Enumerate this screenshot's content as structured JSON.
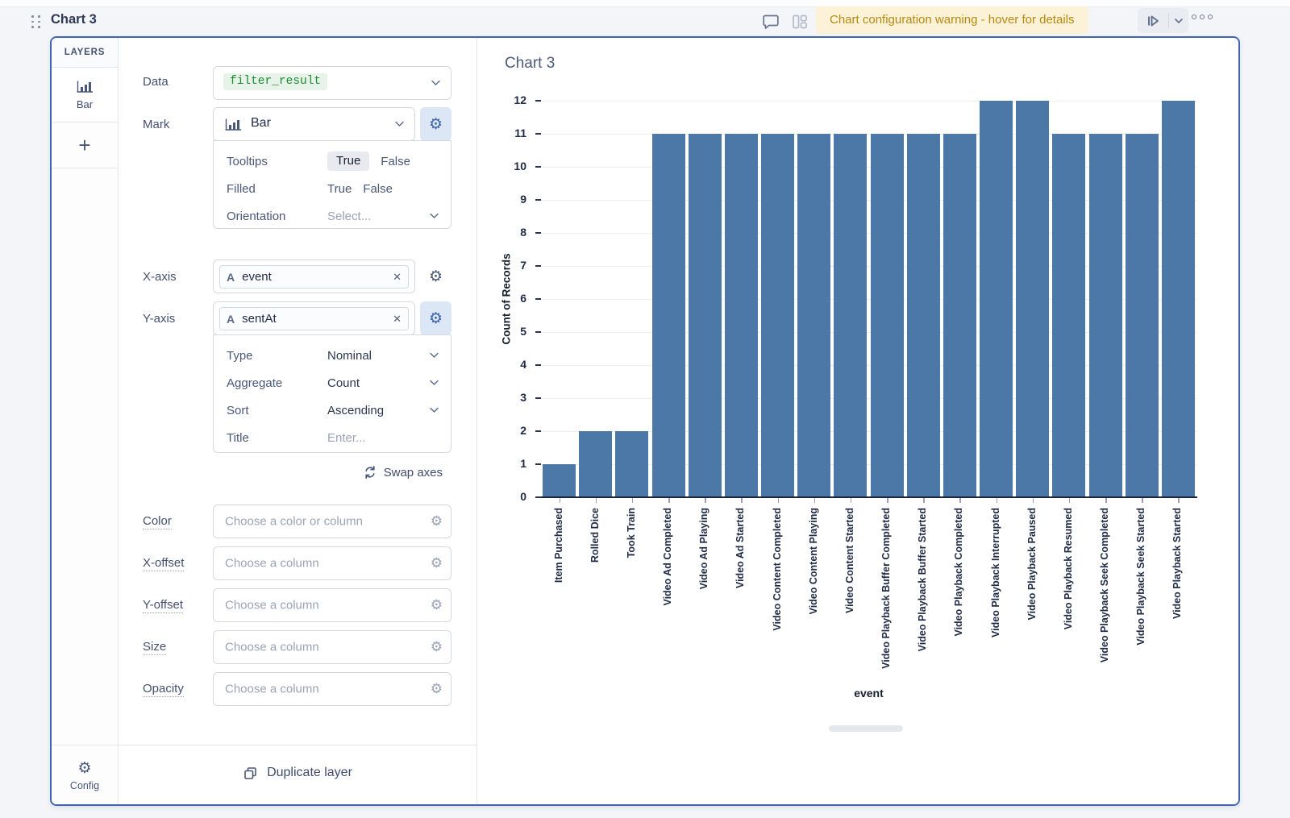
{
  "header": {
    "title": "Chart 3",
    "warning": "Chart configuration warning - hover for details"
  },
  "layers_panel": {
    "title": "LAYERS",
    "layer_label": "Bar",
    "config_label": "Config"
  },
  "config": {
    "data_label": "Data",
    "data_value": "filter_result",
    "mark_label": "Mark",
    "mark_value": "Bar",
    "mark_options": {
      "tooltips_label": "Tooltips",
      "tooltips_value": "True",
      "tooltips_alt": "False",
      "filled_label": "Filled",
      "filled_true": "True",
      "filled_false": "False",
      "orientation_label": "Orientation",
      "orientation_value": "Select..."
    },
    "x_axis": {
      "label": "X-axis",
      "field": "event"
    },
    "y_axis": {
      "label": "Y-axis",
      "field": "sentAt",
      "type_label": "Type",
      "type_value": "Nominal",
      "aggregate_label": "Aggregate",
      "aggregate_value": "Count",
      "sort_label": "Sort",
      "sort_value": "Ascending",
      "title_label": "Title",
      "title_placeholder": "Enter..."
    },
    "swap_axes_label": "Swap axes",
    "encodings": [
      {
        "label": "Color",
        "placeholder": "Choose a color or column"
      },
      {
        "label": "X-offset",
        "placeholder": "Choose a column"
      },
      {
        "label": "Y-offset",
        "placeholder": "Choose a column"
      },
      {
        "label": "Size",
        "placeholder": "Choose a column"
      },
      {
        "label": "Opacity",
        "placeholder": "Choose a column"
      }
    ],
    "duplicate_layer_label": "Duplicate layer"
  },
  "chart_data": {
    "type": "bar",
    "title": "Chart 3",
    "categories": [
      "Item Purchased",
      "Rolled Dice",
      "Took Train",
      "Video Ad Completed",
      "Video Ad Playing",
      "Video Ad Started",
      "Video Content Completed",
      "Video Content Playing",
      "Video Content Started",
      "Video Playback Buffer Completed",
      "Video Playback Buffer Started",
      "Video Playback Completed",
      "Video Playback Interrupted",
      "Video Playback Paused",
      "Video Playback Resumed",
      "Video Playback Seek Completed",
      "Video Playback Seek Started",
      "Video Playback Started"
    ],
    "values": [
      1,
      2,
      2,
      11,
      11,
      11,
      11,
      11,
      11,
      11,
      11,
      11,
      12,
      12,
      11,
      11,
      11,
      12
    ],
    "xlabel": "event",
    "ylabel": "Count of Records",
    "ylim": [
      0,
      12
    ],
    "yticks": [
      0,
      1,
      2,
      3,
      4,
      5,
      6,
      7,
      8,
      9,
      10,
      11,
      12
    ],
    "grid": true,
    "legend": "none",
    "bar_color": "#4c78a8"
  },
  "icons": {
    "gear": "⚙",
    "add": "+",
    "close": "✕",
    "text_field": "A"
  },
  "colors": {
    "accent_border": "#4164ae",
    "bar": "#4c78a8",
    "warning_bg": "#fbf2d8",
    "warning_text": "#b7880e",
    "chip_bg": "#e7f3e8",
    "chip_text": "#1e8a34",
    "active_gear_bg": "#dce7f6"
  }
}
